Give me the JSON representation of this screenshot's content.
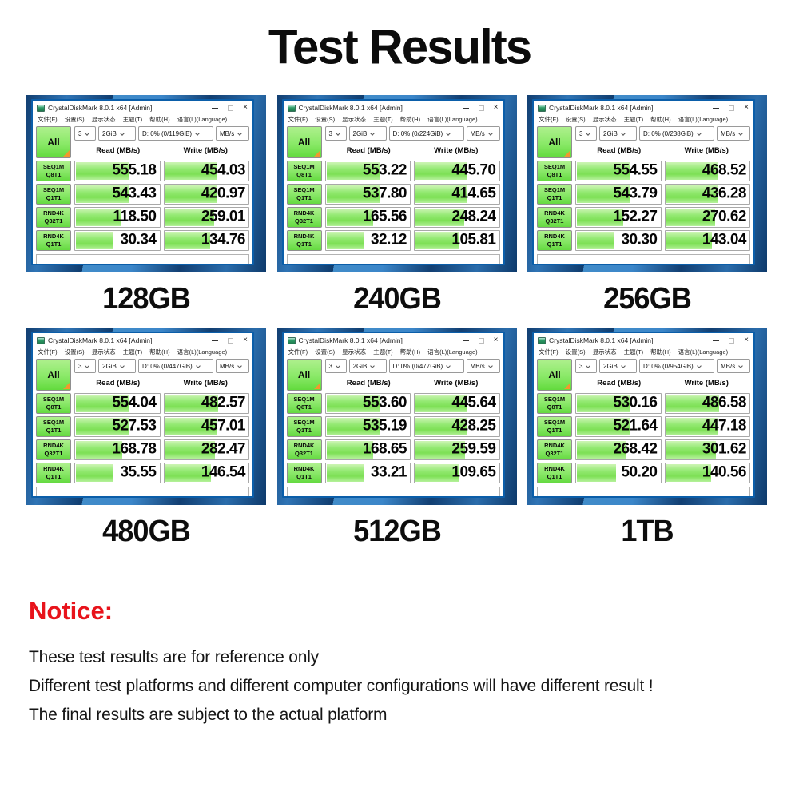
{
  "page": {
    "title": "Test Results",
    "notice": {
      "heading": "Notice:",
      "lines": [
        "These test results are for reference only",
        "Different test platforms and different computer configurations will have different result !",
        "The final results are subject to the actual platform"
      ]
    }
  },
  "window_common": {
    "title": "CrystalDiskMark 8.0.1 x64 [Admin]",
    "controls": {
      "minimize": "",
      "maximize": "",
      "close": "×"
    },
    "menu_items": [
      "文件(F)",
      "设置(S)",
      "显示状态",
      "主题(T)",
      "帮助(H)",
      "语言(L)(Language)"
    ],
    "all_button": "All",
    "count_select": "3",
    "size_select": "2GiB",
    "unit_select": "MB/s",
    "read_header": "Read (MB/s)",
    "write_header": "Write (MB/s)",
    "row_labels": [
      [
        "SEQ1M",
        "Q8T1"
      ],
      [
        "SEQ1M",
        "Q1T1"
      ],
      [
        "RND4K",
        "Q32T1"
      ],
      [
        "RND4K",
        "Q1T1"
      ]
    ]
  },
  "benchmarks": [
    {
      "label": "128GB",
      "drive": "D: 0% (0/119GiB)",
      "read": [
        "555.18",
        "543.43",
        "118.50",
        "30.34"
      ],
      "write": [
        "454.03",
        "420.97",
        "259.01",
        "134.76"
      ]
    },
    {
      "label": "240GB",
      "drive": "D: 0% (0/224GiB)",
      "read": [
        "553.22",
        "537.80",
        "165.56",
        "32.12"
      ],
      "write": [
        "445.70",
        "414.65",
        "248.24",
        "105.81"
      ]
    },
    {
      "label": "256GB",
      "drive": "D: 0% (0/238GiB)",
      "read": [
        "554.55",
        "543.79",
        "152.27",
        "30.30"
      ],
      "write": [
        "468.52",
        "436.28",
        "270.62",
        "143.04"
      ]
    },
    {
      "label": "480GB",
      "drive": "D: 0% (0/447GiB)",
      "read": [
        "554.04",
        "527.53",
        "168.78",
        "35.55"
      ],
      "write": [
        "482.57",
        "457.01",
        "282.47",
        "146.54"
      ]
    },
    {
      "label": "512GB",
      "drive": "D: 0% (0/477GiB)",
      "read": [
        "553.60",
        "535.19",
        "168.65",
        "33.21"
      ],
      "write": [
        "445.64",
        "428.25",
        "259.59",
        "109.65"
      ]
    },
    {
      "label": "1TB",
      "drive": "D: 0% (0/954GiB)",
      "read": [
        "530.16",
        "521.64",
        "268.42",
        "50.20"
      ],
      "write": [
        "486.58",
        "447.18",
        "301.62",
        "140.56"
      ]
    }
  ],
  "colors": {
    "accent_green": "#7de055",
    "accent_orange": "#f2972f",
    "window_border_blue": "#0b5ea9",
    "notice_red": "#e8131b"
  }
}
